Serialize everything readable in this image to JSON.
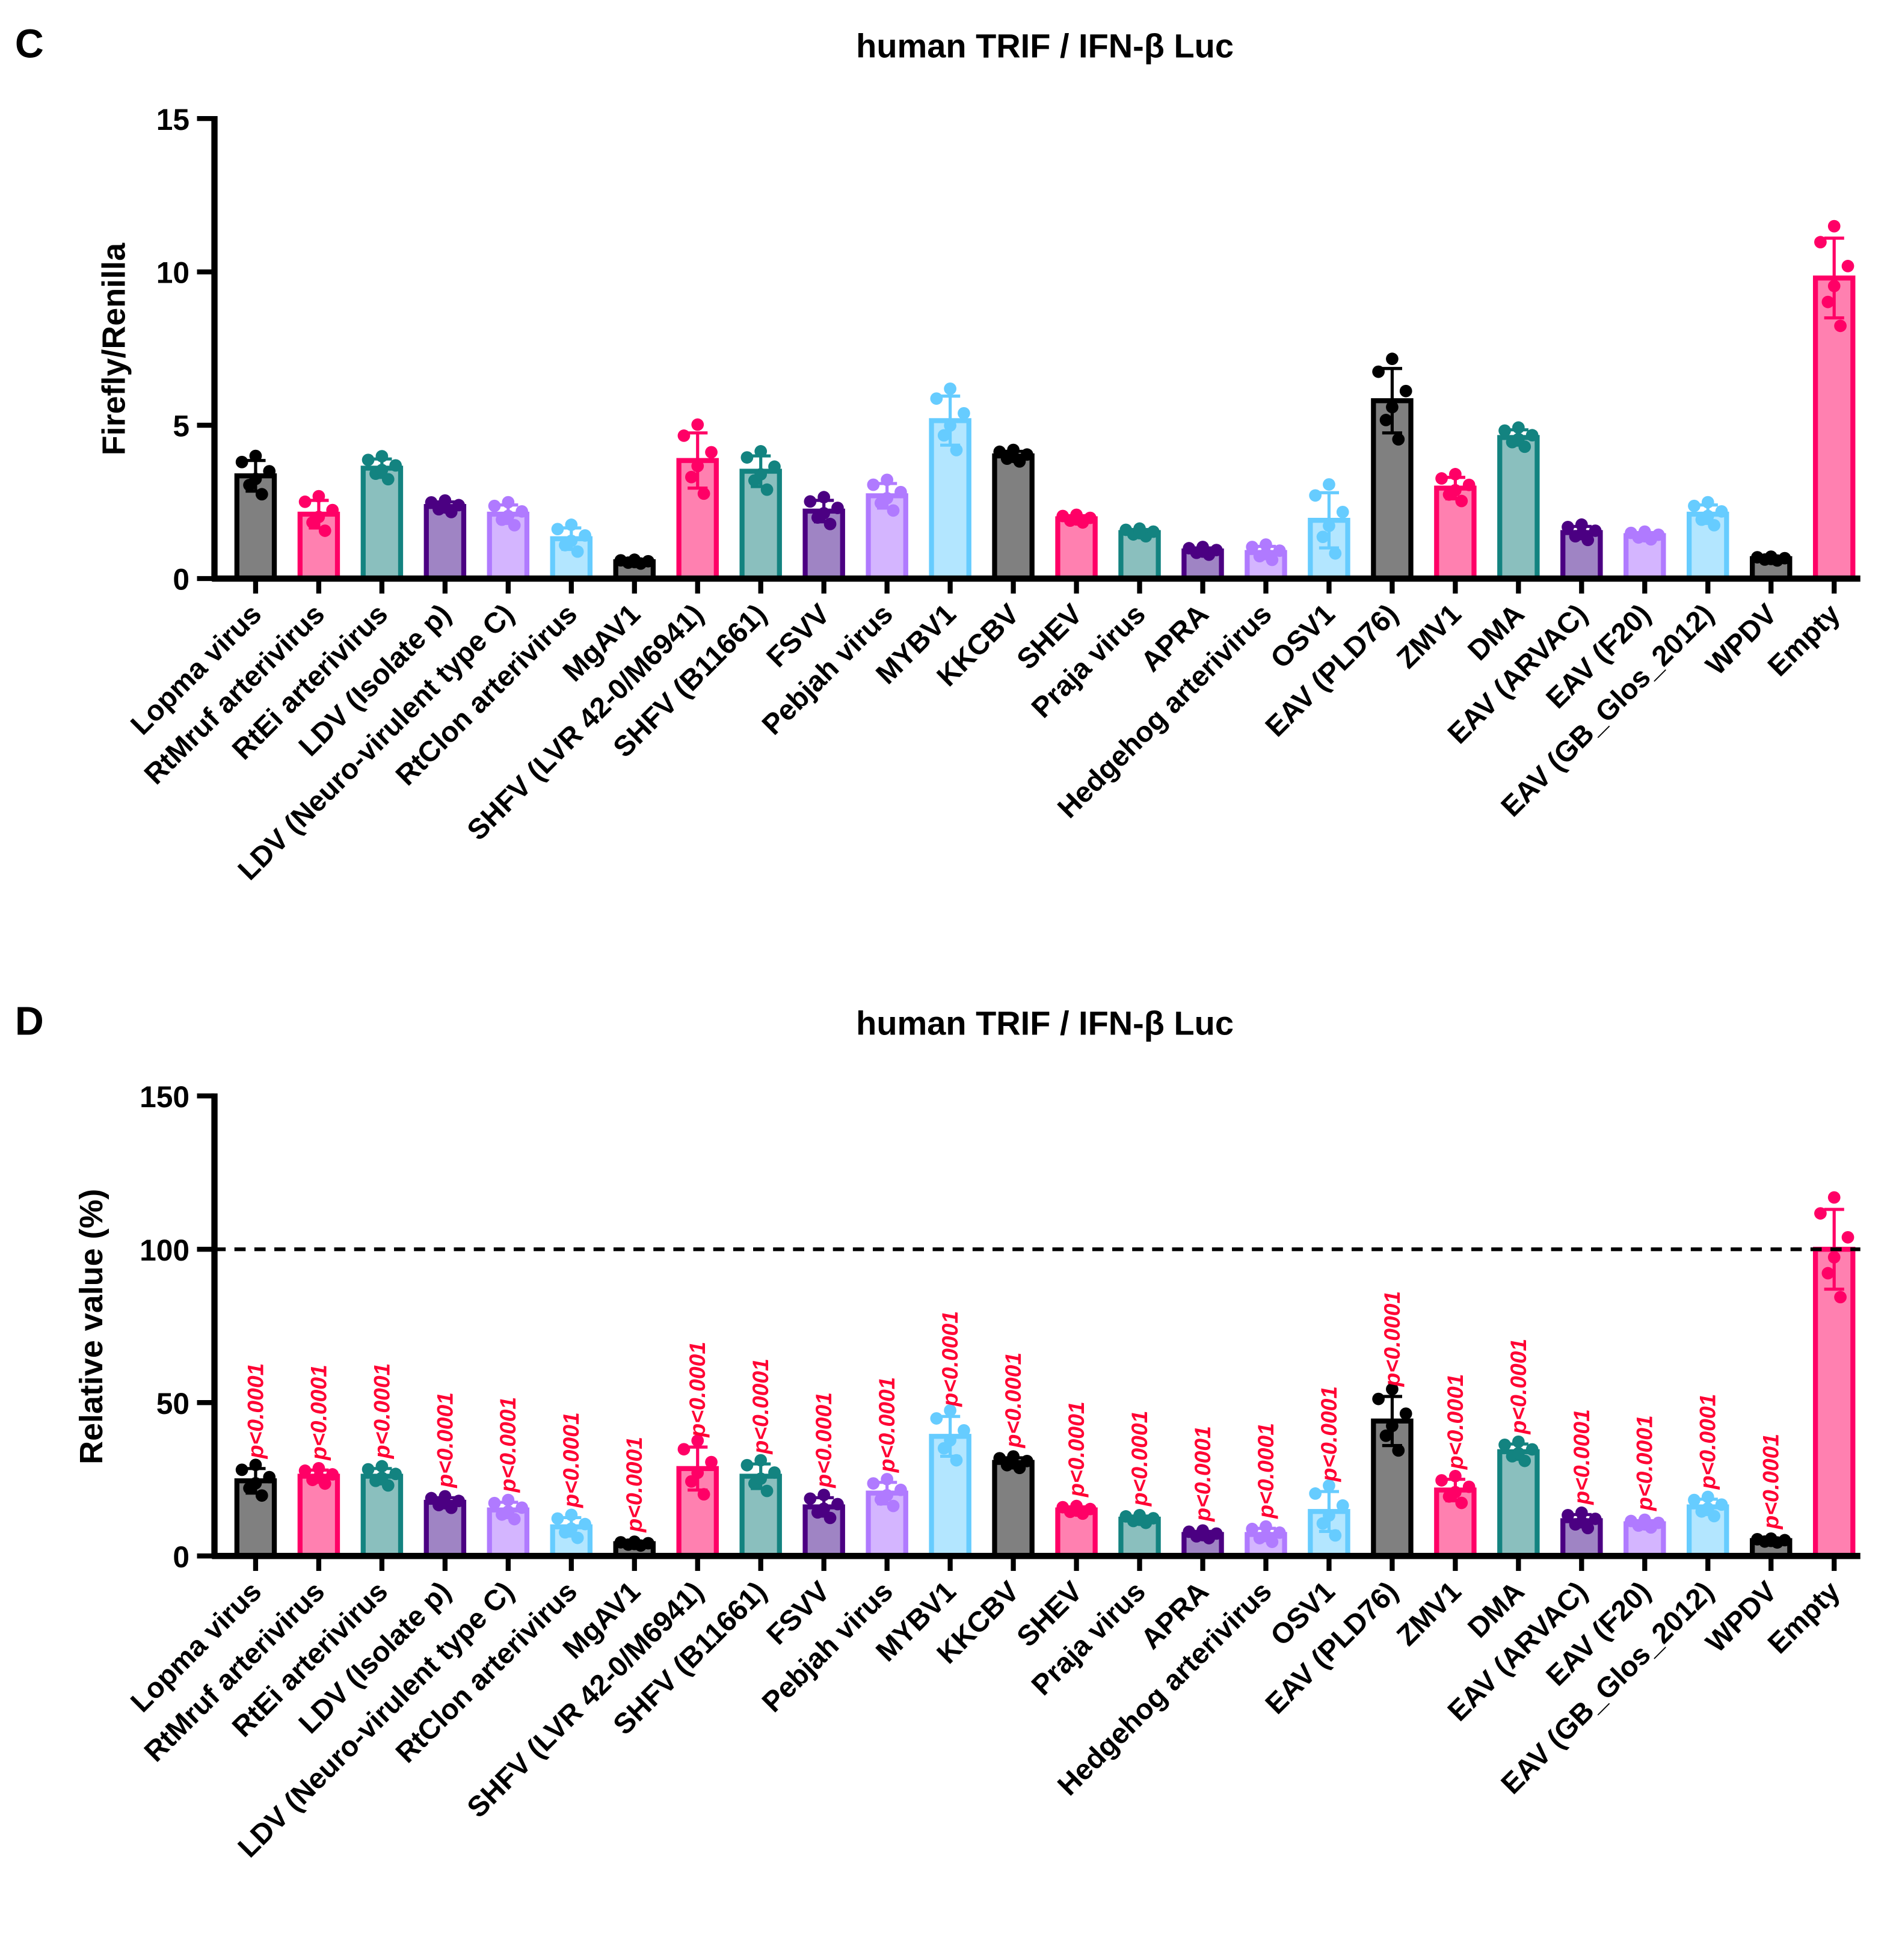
{
  "palette": [
    {
      "stroke": "#000000",
      "fill": "#808080"
    },
    {
      "stroke": "#ff0066",
      "fill": "#ff80b0"
    },
    {
      "stroke": "#138380",
      "fill": "#8abfbe"
    },
    {
      "stroke": "#4b0082",
      "fill": "#9f84c4"
    },
    {
      "stroke": "#b07aff",
      "fill": "#d4b5ff"
    },
    {
      "stroke": "#66ccff",
      "fill": "#b3e6ff"
    }
  ],
  "chart_data": [
    {
      "panel": "C",
      "type": "bar",
      "title": "human TRIF / IFN-β Luc",
      "xlabel": "",
      "ylabel": "Firefly/Renilla",
      "ylim": [
        0,
        15
      ],
      "yticks": [
        0,
        5,
        10,
        15
      ],
      "categories": [
        "Lopma virus",
        "RtMruf arterivirus",
        "RtEi arterivirus",
        "LDV (Isolate p)",
        "LDV (Neuro-virulent type C)",
        "RtClon arterivirus",
        "MgAV1",
        "SHFV (LVR 42-0/M6941)",
        "SHFV (B11661)",
        "FSVV",
        "Pebjah virus",
        "MYBV1",
        "KKCBV",
        "SHEV",
        "Praja virus",
        "APRA",
        "Hedgehog arterivirus",
        "OSV1",
        "EAV (PLD76)",
        "ZMV1",
        "DMA",
        "EAV (ARVAC)",
        "EAV (F20)",
        "EAV (GB_Glos_2012)",
        "WPDV",
        "Empty"
      ],
      "values": [
        3.35,
        2.1,
        3.6,
        2.35,
        2.1,
        1.3,
        0.55,
        3.85,
        3.5,
        2.2,
        2.7,
        5.15,
        4.0,
        1.95,
        1.5,
        0.9,
        0.85,
        1.9,
        5.8,
        2.95,
        4.6,
        1.5,
        1.4,
        2.1,
        0.65,
        9.8
      ],
      "errors": [
        0.5,
        0.45,
        0.3,
        0.15,
        0.3,
        0.35,
        0.05,
        0.9,
        0.5,
        0.35,
        0.4,
        0.8,
        0.15,
        0.1,
        0.1,
        0.1,
        0.2,
        0.9,
        1.05,
        0.35,
        0.25,
        0.2,
        0.1,
        0.3,
        0.05,
        1.3
      ]
    },
    {
      "panel": "D",
      "type": "bar",
      "title": "human TRIF / IFN-β Luc",
      "xlabel": "",
      "ylabel": "Relative value (%)",
      "ylim": [
        0,
        150
      ],
      "yticks": [
        0,
        50,
        100,
        150
      ],
      "reference_line": 100,
      "categories": [
        "Lopma virus",
        "RtMruf arterivirus",
        "RtEi arterivirus",
        "LDV (Isolate p)",
        "LDV (Neuro-virulent type C)",
        "RtClon arterivirus",
        "MgAV1",
        "SHFV (LVR 42-0/M6941)",
        "SHFV (B11661)",
        "FSVV",
        "Pebjah virus",
        "MYBV1",
        "KKCBV",
        "SHEV",
        "Praja virus",
        "APRA",
        "Hedgehog arterivirus",
        "OSV1",
        "EAV (PLD76)",
        "ZMV1",
        "DMA",
        "EAV (ARVAC)",
        "EAV (F20)",
        "EAV (GB_Glos_2012)",
        "WPDV",
        "Empty"
      ],
      "values": [
        24.5,
        26,
        26,
        17.5,
        15,
        9.5,
        4,
        28.5,
        26,
        16,
        20.5,
        39,
        30.5,
        15,
        12,
        7,
        7,
        14.5,
        44,
        21.5,
        34,
        11.5,
        10.5,
        16,
        5,
        100
      ],
      "errors": [
        4,
        2,
        2.5,
        1.5,
        2.5,
        3,
        0.5,
        7,
        4,
        3,
        3.5,
        6.5,
        1.5,
        1,
        1,
        1,
        2,
        6.5,
        8,
        3.5,
        2.5,
        2,
        1,
        2.5,
        0.5,
        13
      ],
      "annotations": [
        "p<0.0001",
        "p<0.0001",
        "p<0.0001",
        "p<0.0001",
        "p<0.0001",
        "p<0.0001",
        "p<0.0001",
        "p<0.0001",
        "p<0.0001",
        "p<0.0001",
        "p<0.0001",
        "p<0.0001",
        "p<0.0001",
        "p<0.0001",
        "p<0.0001",
        "p<0.0001",
        "p<0.0001",
        "p<0.0001",
        "p<0.0001",
        "p<0.0001",
        "p<0.0001",
        "p<0.0001",
        "p<0.0001",
        "p<0.0001",
        "p<0.0001",
        ""
      ]
    }
  ]
}
